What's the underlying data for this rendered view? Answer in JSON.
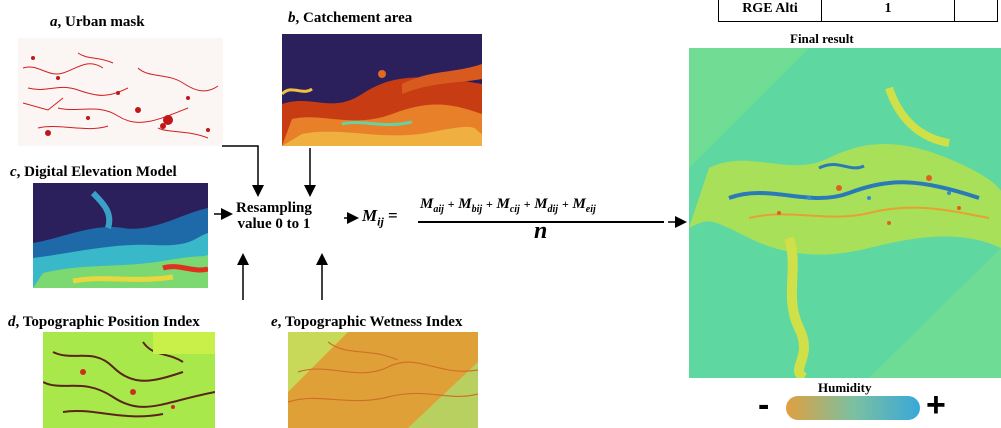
{
  "panels": {
    "a": {
      "letter": "a",
      "title": ", Urban mask"
    },
    "b": {
      "letter": "b",
      "title": ", Catchement area"
    },
    "c": {
      "letter": "c",
      "title": ", Digital Elevation Model"
    },
    "d": {
      "letter": "d",
      "title": ", Topographic Position Index"
    },
    "e": {
      "letter": "e",
      "title": ", Topographic Wetness Index"
    }
  },
  "resampling": {
    "line1": "Resampling",
    "line2": "value 0 to 1"
  },
  "formula": {
    "lhs_symbol": "M",
    "lhs_sub": "ij",
    "equals": "=",
    "terms": [
      {
        "symbol": "M",
        "sub": "aij"
      },
      {
        "symbol": "M",
        "sub": "bij"
      },
      {
        "symbol": "M",
        "sub": "cij"
      },
      {
        "symbol": "M",
        "sub": "dij"
      },
      {
        "symbol": "M",
        "sub": "eij"
      }
    ],
    "plus": "+",
    "denominator": "n"
  },
  "final_result": {
    "title": "Final result"
  },
  "humidity": {
    "label": "Humidity",
    "minus": "-",
    "plus": "+"
  },
  "header_table": {
    "cell1": "RGE Alti",
    "cell2": "1"
  },
  "colors": {
    "humidity_low": "#e0a040",
    "humidity_high": "#3aa8d8",
    "map_base": "#55d8a8",
    "dark_bg": "#2b1f5c"
  }
}
